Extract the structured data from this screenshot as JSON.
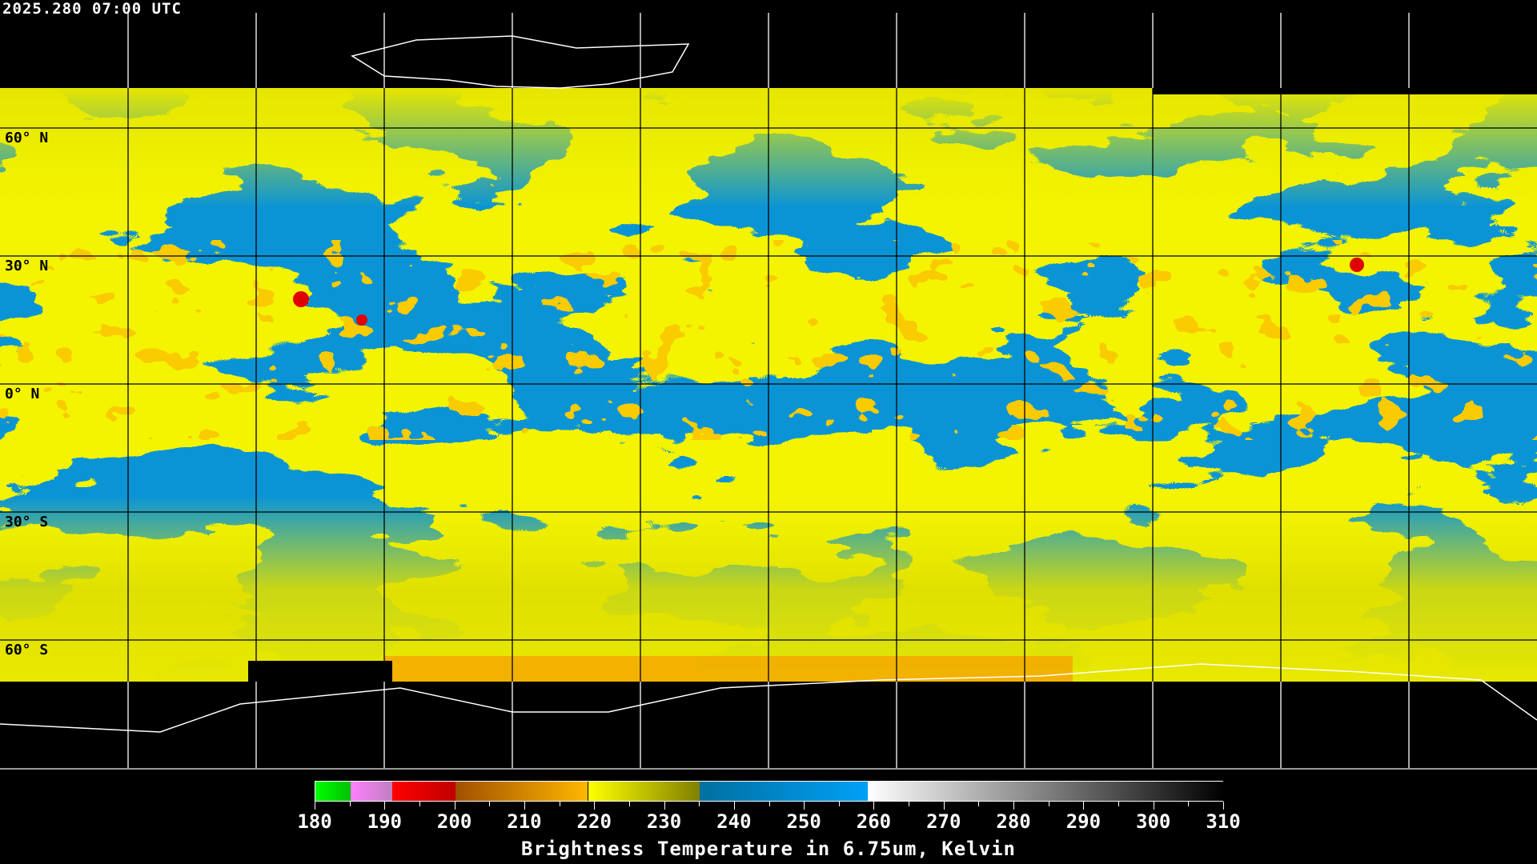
{
  "timestamp": "2025.280 07:00 UTC",
  "latitude_labels": [
    {
      "text": "60° N",
      "lat": 60
    },
    {
      "text": "30° N",
      "lat": 30
    },
    {
      "text": "0° N",
      "lat": 0
    },
    {
      "text": "30° S",
      "lat": -30
    },
    {
      "text": "60° S",
      "lat": -60
    }
  ],
  "grid": {
    "lon_step_deg": 30,
    "lat_step_deg": 30
  },
  "colorbar": {
    "title": "Brightness Temperature in 6.75um, Kelvin",
    "min": 180,
    "max": 310,
    "tick_labels": [
      "180",
      "190",
      "200",
      "210",
      "220",
      "230",
      "240",
      "250",
      "260",
      "270",
      "280",
      "290",
      "300",
      "310"
    ],
    "segments": [
      {
        "from": 180,
        "to": 185,
        "colors": [
          "#00ff00",
          "#00c000"
        ]
      },
      {
        "from": 185,
        "to": 191,
        "colors": [
          "#ff80ff",
          "#c080c0"
        ]
      },
      {
        "from": 191,
        "to": 200,
        "colors": [
          "#ff0000",
          "#c00000"
        ]
      },
      {
        "from": 200,
        "to": 219,
        "colors": [
          "#a05000",
          "#ffb800"
        ]
      },
      {
        "from": 219,
        "to": 235,
        "colors": [
          "#ffff00",
          "#808000"
        ]
      },
      {
        "from": 235,
        "to": 259,
        "colors": [
          "#0070a0",
          "#00a0f8"
        ]
      },
      {
        "from": 259,
        "to": 310,
        "colors": [
          "#ffffff",
          "#000000"
        ]
      }
    ]
  },
  "colors": {
    "dry": "#0a94d6",
    "moist": "#e6e600",
    "cold": "#f0a000",
    "very_cold": "#e00000"
  }
}
